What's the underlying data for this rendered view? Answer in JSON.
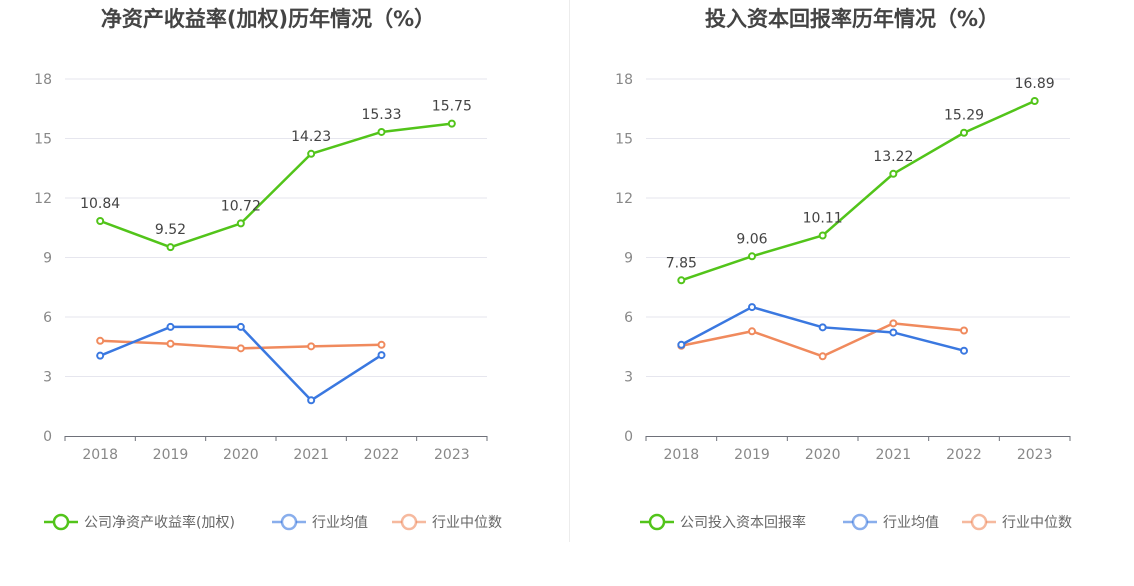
{
  "chart_data": [
    {
      "type": "line",
      "title": "净资产收益率(加权)历年情况（%）",
      "categories": [
        "2018",
        "2019",
        "2020",
        "2021",
        "2022",
        "2023"
      ],
      "ylim": [
        0,
        18
      ],
      "yticks": [
        0,
        3,
        6,
        9,
        12,
        15,
        18
      ],
      "grid": true,
      "legend_position": "bottom",
      "series": [
        {
          "name": "公司净资产收益率(加权)",
          "color": "#52c41a",
          "values": [
            10.84,
            9.52,
            10.72,
            14.23,
            15.33,
            15.75
          ],
          "labels": [
            "10.84",
            "9.52",
            "10.72",
            "14.23",
            "15.33",
            "15.75"
          ]
        },
        {
          "name": "行业均值",
          "color": "#3a78e0",
          "values": [
            4.05,
            5.5,
            5.5,
            1.8,
            4.08,
            null
          ]
        },
        {
          "name": "行业中位数",
          "color": "#f08a5d",
          "values": [
            4.8,
            4.65,
            4.42,
            4.52,
            4.6,
            null
          ]
        }
      ]
    },
    {
      "type": "line",
      "title": "投入资本回报率历年情况（%）",
      "categories": [
        "2018",
        "2019",
        "2020",
        "2021",
        "2022",
        "2023"
      ],
      "ylim": [
        0,
        18
      ],
      "yticks": [
        0,
        3,
        6,
        9,
        12,
        15,
        18
      ],
      "grid": true,
      "legend_position": "bottom",
      "series": [
        {
          "name": "公司投入资本回报率",
          "color": "#52c41a",
          "values": [
            7.85,
            9.06,
            10.11,
            13.22,
            15.29,
            16.89
          ],
          "labels": [
            "7.85",
            "9.06",
            "10.11",
            "13.22",
            "15.29",
            "16.89"
          ]
        },
        {
          "name": "行业均值",
          "color": "#3a78e0",
          "values": [
            4.6,
            6.5,
            5.48,
            5.22,
            4.3,
            null
          ]
        },
        {
          "name": "行业中位数",
          "color": "#f08a5d",
          "values": [
            4.55,
            5.28,
            4.02,
            5.68,
            5.32,
            null
          ]
        }
      ]
    }
  ],
  "colors": {
    "axis_text": "#888888",
    "title": "#444444",
    "grid": "#e6e6ee",
    "legend_text": "#666666"
  }
}
